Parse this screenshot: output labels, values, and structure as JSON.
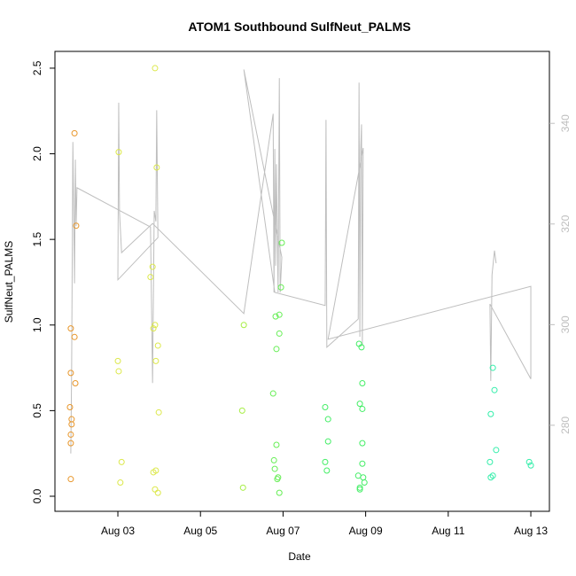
{
  "chart_data": {
    "type": "scatter",
    "title": "ATOM1 Southbound SulfNeut_PALMS",
    "x_label": "Date",
    "y_label": "SulfNeut_PALMS",
    "xlim": [
      1.476,
      13.45
    ],
    "xticks": [
      {
        "value": 3,
        "label": "Aug 03"
      },
      {
        "value": 5,
        "label": "Aug 05"
      },
      {
        "value": 7,
        "label": "Aug 07"
      },
      {
        "value": 9,
        "label": "Aug 09"
      },
      {
        "value": 11,
        "label": "Aug 11"
      },
      {
        "value": 13,
        "label": "Aug 13"
      }
    ],
    "ylim": [
      -0.088,
      2.598
    ],
    "yticks": [
      {
        "value": 0,
        "label": "0.0"
      },
      0.5,
      {
        "value": 1,
        "label": "1.0"
      },
      1.5,
      {
        "value": 2,
        "label": "2.0"
      },
      2.5
    ],
    "y2lim": [
      262.9,
      354.3
    ],
    "y2ticks": [
      280,
      300,
      320,
      340
    ],
    "y2_color": "#BEBEBE",
    "series": [
      {
        "color": "#E8962A",
        "x": [
          1.86,
          1.86,
          1.86,
          1.88,
          1.88,
          1.84,
          1.86,
          1.86,
          1.95,
          1.97,
          1.99,
          1.95
        ],
        "values": [
          0.1,
          0.31,
          0.36,
          0.42,
          0.45,
          0.52,
          0.72,
          0.98,
          0.93,
          0.66,
          1.58,
          2.12
        ]
      },
      {
        "color": "#DCE84A",
        "x": [
          3.02,
          3.0,
          3.02,
          3.09,
          3.06,
          3.9,
          3.94,
          3.79,
          3.84,
          3.86,
          3.9,
          3.97,
          3.92,
          3.99,
          3.86,
          3.92,
          3.9,
          3.97
        ],
        "values": [
          2.01,
          0.79,
          0.73,
          0.2,
          0.08,
          2.5,
          1.92,
          1.28,
          1.34,
          0.98,
          1.0,
          0.88,
          0.79,
          0.49,
          0.14,
          0.15,
          0.04,
          0.02
        ]
      },
      {
        "color": "#A6EE44",
        "x": [
          6.05,
          6.01,
          6.03
        ],
        "values": [
          1.0,
          0.5,
          0.05
        ]
      },
      {
        "color": "#66EE55",
        "x": [
          6.76,
          6.82,
          6.84,
          6.91,
          6.97,
          6.95,
          6.91,
          6.84,
          6.78,
          6.8,
          6.86,
          6.88,
          6.91
        ],
        "values": [
          0.6,
          1.05,
          0.86,
          1.06,
          1.48,
          1.22,
          0.95,
          0.3,
          0.21,
          0.16,
          0.1,
          0.11,
          0.02
        ]
      },
      {
        "color": "#44EE66",
        "x": [
          8.02,
          8.09,
          8.09,
          8.02,
          8.06,
          8.84,
          8.9,
          8.92,
          8.86,
          8.92,
          8.92,
          8.92,
          8.82,
          8.94,
          8.86,
          8.86,
          8.97
        ],
        "values": [
          0.52,
          0.45,
          0.32,
          0.2,
          0.15,
          0.89,
          0.87,
          0.66,
          0.54,
          0.51,
          0.31,
          0.19,
          0.12,
          0.11,
          0.05,
          0.04,
          0.08
        ]
      },
      {
        "color": "#33EEAA",
        "x": [
          12.08,
          12.12,
          12.03,
          12.16,
          12.01,
          12.08,
          12.03,
          12.96,
          13.0
        ],
        "values": [
          0.75,
          0.62,
          0.48,
          0.27,
          0.2,
          0.12,
          0.11,
          0.2,
          0.18
        ]
      },
      {
        "type": "line",
        "axis": "y2",
        "color": "#BEBEBE",
        "x": [
          1.86,
          1.88,
          1.91,
          1.95,
          1.97,
          1.99,
          2.01,
          3.79,
          3.84,
          3.88,
          3.92,
          3.94,
          3.97,
          3.0,
          3.02,
          3.04,
          3.09,
          3.84,
          6.05,
          6.76,
          6.78,
          6.8,
          6.82,
          6.84,
          6.88,
          6.91,
          6.93,
          6.97,
          6.05,
          6.8,
          8.02,
          8.04,
          8.06,
          8.82,
          8.84,
          8.86,
          8.88,
          8.9,
          8.92,
          8.94,
          8.09,
          13.0,
          13.0,
          12.01,
          12.03,
          12.06,
          12.12,
          12.16
        ],
        "values": [
          274.4,
          290.6,
          336.3,
          308.2,
          332.8,
          319.6,
          327.2,
          319.4,
          288.4,
          322.6,
          320.5,
          342.6,
          317.3,
          308.9,
          344.1,
          322.2,
          314.3,
          320.1,
          302.2,
          341.9,
          306.4,
          334.9,
          311.7,
          331.9,
          306.4,
          349.0,
          306.4,
          313.4,
          350.7,
          306.4,
          303.8,
          340.7,
          295.5,
          301.1,
          348.1,
          297.6,
          334.9,
          339.8,
          295.8,
          335.1,
          297.1,
          307.6,
          289.2,
          304.1,
          288.8,
          309.9,
          314.7,
          312.2
        ]
      }
    ]
  }
}
